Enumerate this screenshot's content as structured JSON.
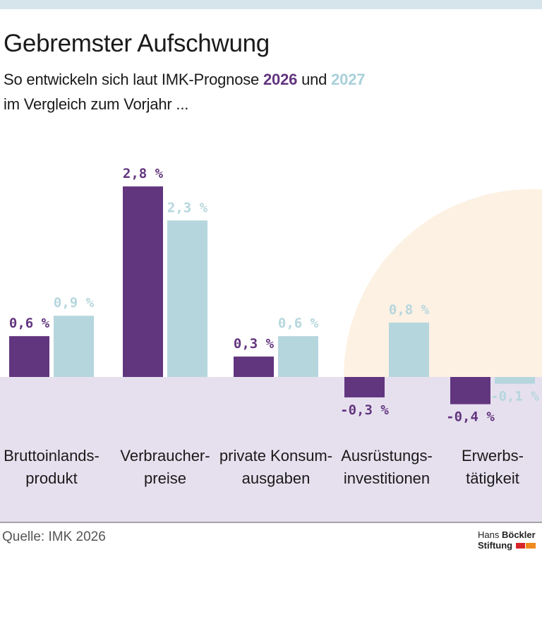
{
  "header": {
    "title": "Gebremster Aufschwung",
    "subtitle_prefix": "So entwickeln sich laut IMK-Prognose",
    "year1": "2026",
    "conjunction": "und",
    "year2": "2027",
    "subtitle_line2": "im Vergleich zum Vorjahr ..."
  },
  "chart_data": {
    "type": "bar",
    "categories": [
      [
        "Bruttoinlands-",
        "produkt"
      ],
      [
        "Verbraucher-",
        "preise"
      ],
      [
        "private Konsum-",
        "ausgaben"
      ],
      [
        "Ausrüstungs-",
        "investitionen"
      ],
      [
        "Erwerbs-",
        "tätigkeit"
      ]
    ],
    "series": [
      {
        "name": "2026",
        "values": [
          0.6,
          2.8,
          0.3,
          -0.3,
          -0.4
        ],
        "labels": [
          "0,6 %",
          "2,8 %",
          "0,3 %",
          "-0,3 %",
          "-0,4 %"
        ],
        "color": "#62357f"
      },
      {
        "name": "2027",
        "values": [
          0.9,
          2.3,
          0.6,
          0.8,
          -0.1
        ],
        "labels": [
          "0,9 %",
          "2,3 %",
          "0,6 %",
          "0,8 %",
          "-0,1 %"
        ],
        "color": "#b6d6de"
      }
    ],
    "unit": "%",
    "ylim": [
      -0.6,
      3.0
    ],
    "negative_area_color": "#e6e0ee",
    "highlight_color": "#fdf1e3",
    "grid": false,
    "legend": "in subtitle"
  },
  "footer": {
    "source": "Quelle: IMK 2026",
    "logo_line1_light": "Hans",
    "logo_line1_bold": "Böckler",
    "logo_line2": "Stiftung",
    "logo_colors": [
      "#d7262a",
      "#f08a1c"
    ]
  }
}
